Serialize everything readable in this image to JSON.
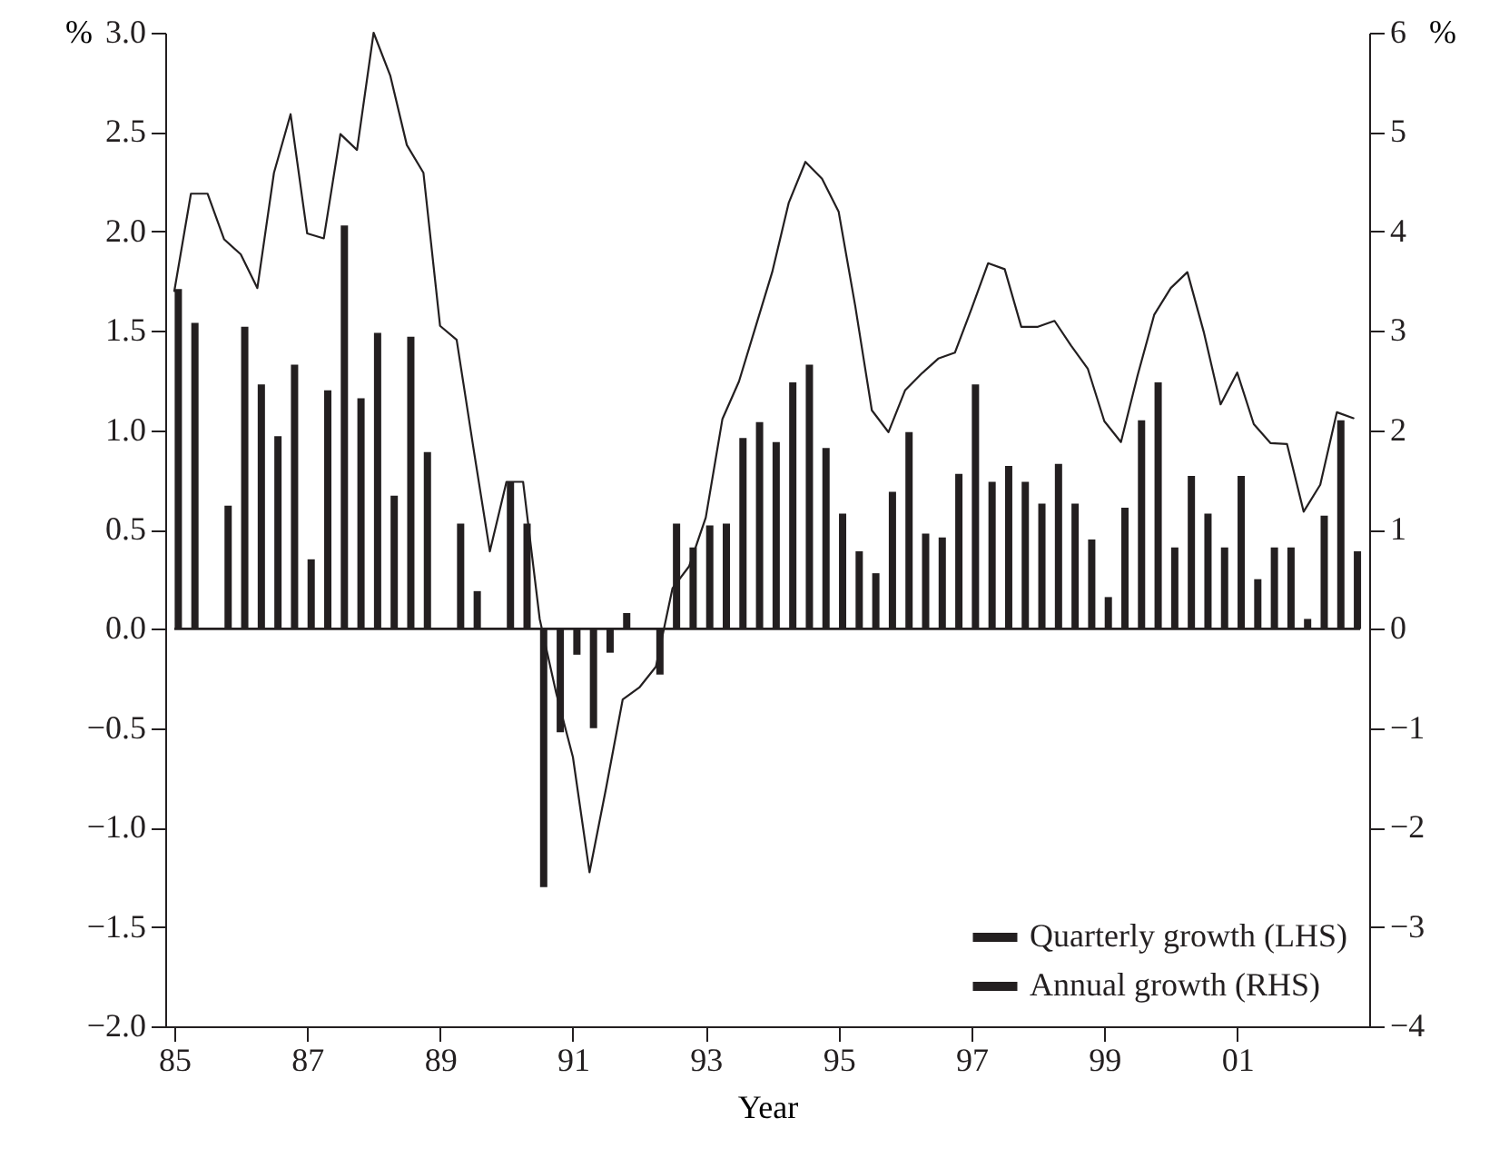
{
  "chart_data": {
    "type": "bar",
    "xlabel": "Year",
    "ylabel": "%",
    "y2label": "%",
    "x": [
      1985.06,
      1985.31,
      1985.56,
      1985.81,
      1986.06,
      1986.31,
      1986.56,
      1986.81,
      1987.06,
      1987.31,
      1987.56,
      1987.81,
      1988.06,
      1988.31,
      1988.56,
      1988.81,
      1989.06,
      1989.31,
      1989.56,
      1989.81,
      1990.06,
      1990.31,
      1990.56,
      1990.81,
      1991.06,
      1991.31,
      1991.56,
      1991.81,
      1992.06,
      1992.31,
      1992.56,
      1992.81,
      1993.06,
      1993.31,
      1993.56,
      1993.81,
      1994.06,
      1994.31,
      1994.56,
      1994.81,
      1995.06,
      1995.31,
      1995.56,
      1995.81,
      1996.06,
      1996.31,
      1996.56,
      1996.81,
      1997.06,
      1997.31,
      1997.56,
      1997.81,
      1998.06,
      1998.31,
      1998.56,
      1998.81,
      1999.06,
      1999.31,
      1999.56,
      1999.81,
      2000.06,
      2000.31,
      2000.56,
      2000.81,
      2001.06,
      2001.31,
      2001.56,
      2001.81,
      2002.06,
      2002.31,
      2002.56,
      2002.81
    ],
    "series": [
      {
        "name": "Quarterly growth (LHS)",
        "color": "#231f20",
        "values": [
          1.71,
          1.54,
          0,
          0.62,
          1.52,
          1.23,
          0.97,
          1.33,
          0.35,
          1.2,
          2.03,
          1.16,
          1.49,
          0.67,
          1.47,
          0.89,
          0,
          0.53,
          0.19,
          0,
          0.74,
          0.53,
          -1.3,
          -0.52,
          -0.13,
          -0.5,
          -0.12,
          0.08,
          0,
          -0.23,
          0.53,
          0.41,
          0.52,
          0.53,
          0.96,
          1.04,
          0.94,
          1.24,
          1.33,
          0.91,
          0.58,
          0.39,
          0.28,
          0.69,
          0.99,
          0.48,
          0.46,
          0.78,
          1.23,
          0.74,
          0.82,
          0.74,
          0.63,
          0.83,
          0.63,
          0.45,
          0.16,
          0.61,
          1.05,
          1.24,
          0.41,
          0.77,
          0.58,
          0.41,
          0.77,
          0.25,
          0.41,
          0.41,
          0.05,
          0.57,
          1.05,
          0.39
        ]
      },
      {
        "name": "Annual growth (RHS)",
        "type": "line",
        "axis": "y2",
        "color": "#231f20",
        "x": [
          1985,
          1985.25,
          1985.5,
          1985.75,
          1986,
          1986.25,
          1986.5,
          1986.75,
          1987,
          1987.25,
          1987.5,
          1987.75,
          1988,
          1988.25,
          1988.5,
          1988.75,
          1989,
          1989.25,
          1989.5,
          1989.75,
          1990,
          1990.25,
          1990.5,
          1990.75,
          1991,
          1991.25,
          1991.5,
          1991.75,
          1992,
          1992.25,
          1992.5,
          1992.75,
          1993,
          1993.25,
          1993.5,
          1993.75,
          1994,
          1994.25,
          1994.5,
          1994.75,
          1995,
          1995.25,
          1995.5,
          1995.75,
          1996,
          1996.25,
          1996.5,
          1996.75,
          1997,
          1997.25,
          1997.5,
          1997.75,
          1998,
          1998.25,
          1998.5,
          1998.75,
          1999,
          1999.25,
          1999.5,
          1999.75,
          2000,
          2000.25,
          2000.5,
          2000.75,
          2001,
          2001.25,
          2001.5,
          2001.75,
          2002,
          2002.25,
          2002.5,
          2002.75
        ],
        "values": [
          3.4,
          4.38,
          4.38,
          3.92,
          3.77,
          3.43,
          4.59,
          5.18,
          3.98,
          3.93,
          4.98,
          4.82,
          6.0,
          5.57,
          4.87,
          4.59,
          3.05,
          2.91,
          1.83,
          0.78,
          1.48,
          1.48,
          0.1,
          -0.65,
          -1.29,
          -2.45,
          -1.6,
          -0.71,
          -0.59,
          -0.38,
          0.41,
          0.63,
          1.12,
          2.11,
          2.49,
          3.04,
          3.59,
          4.29,
          4.7,
          4.53,
          4.2,
          3.25,
          2.2,
          1.98,
          2.4,
          2.57,
          2.72,
          2.78,
          3.22,
          3.68,
          3.62,
          3.04,
          3.04,
          3.1,
          2.85,
          2.62,
          2.09,
          1.88,
          2.55,
          3.16,
          3.43,
          3.59,
          2.98,
          2.26,
          2.58,
          2.06,
          1.87,
          1.86,
          1.18,
          1.45,
          2.18,
          2.12
        ]
      }
    ],
    "xlim": [
      1985,
      2002.85
    ],
    "xticks": [
      {
        "value": 1985,
        "label": "85"
      },
      {
        "value": 1987,
        "label": "87"
      },
      {
        "value": 1989,
        "label": "89"
      },
      {
        "value": 1991,
        "label": "91"
      },
      {
        "value": 1993,
        "label": "93"
      },
      {
        "value": 1995,
        "label": "95"
      },
      {
        "value": 1997,
        "label": "97"
      },
      {
        "value": 1999,
        "label": "99"
      },
      {
        "value": 2001,
        "label": "01"
      }
    ],
    "ylim": [
      -2,
      3
    ],
    "yticks": [
      {
        "value": -2,
        "label": "−2.0"
      },
      {
        "value": -1.5,
        "label": "−1.5"
      },
      {
        "value": -1,
        "label": "−1.0"
      },
      {
        "value": -0.5,
        "label": "−0.5"
      },
      {
        "value": 0,
        "label": "0.0"
      },
      {
        "value": 0.5,
        "label": "0.5"
      },
      {
        "value": 1,
        "label": "1.0"
      },
      {
        "value": 1.5,
        "label": "1.5"
      },
      {
        "value": 2,
        "label": "2.0"
      },
      {
        "value": 2.5,
        "label": "2.5"
      },
      {
        "value": 3,
        "label": "3.0"
      }
    ],
    "y2lim": [
      -4,
      6
    ],
    "y2ticks": [
      {
        "value": -4,
        "label": "−4"
      },
      {
        "value": -3,
        "label": "−3"
      },
      {
        "value": -2,
        "label": "−2"
      },
      {
        "value": -1,
        "label": "−1"
      },
      0,
      1,
      2,
      3,
      4,
      5,
      6
    ],
    "ref_lines": [
      {
        "axis": "y",
        "value": 0
      }
    ],
    "legend": "bottom right"
  }
}
